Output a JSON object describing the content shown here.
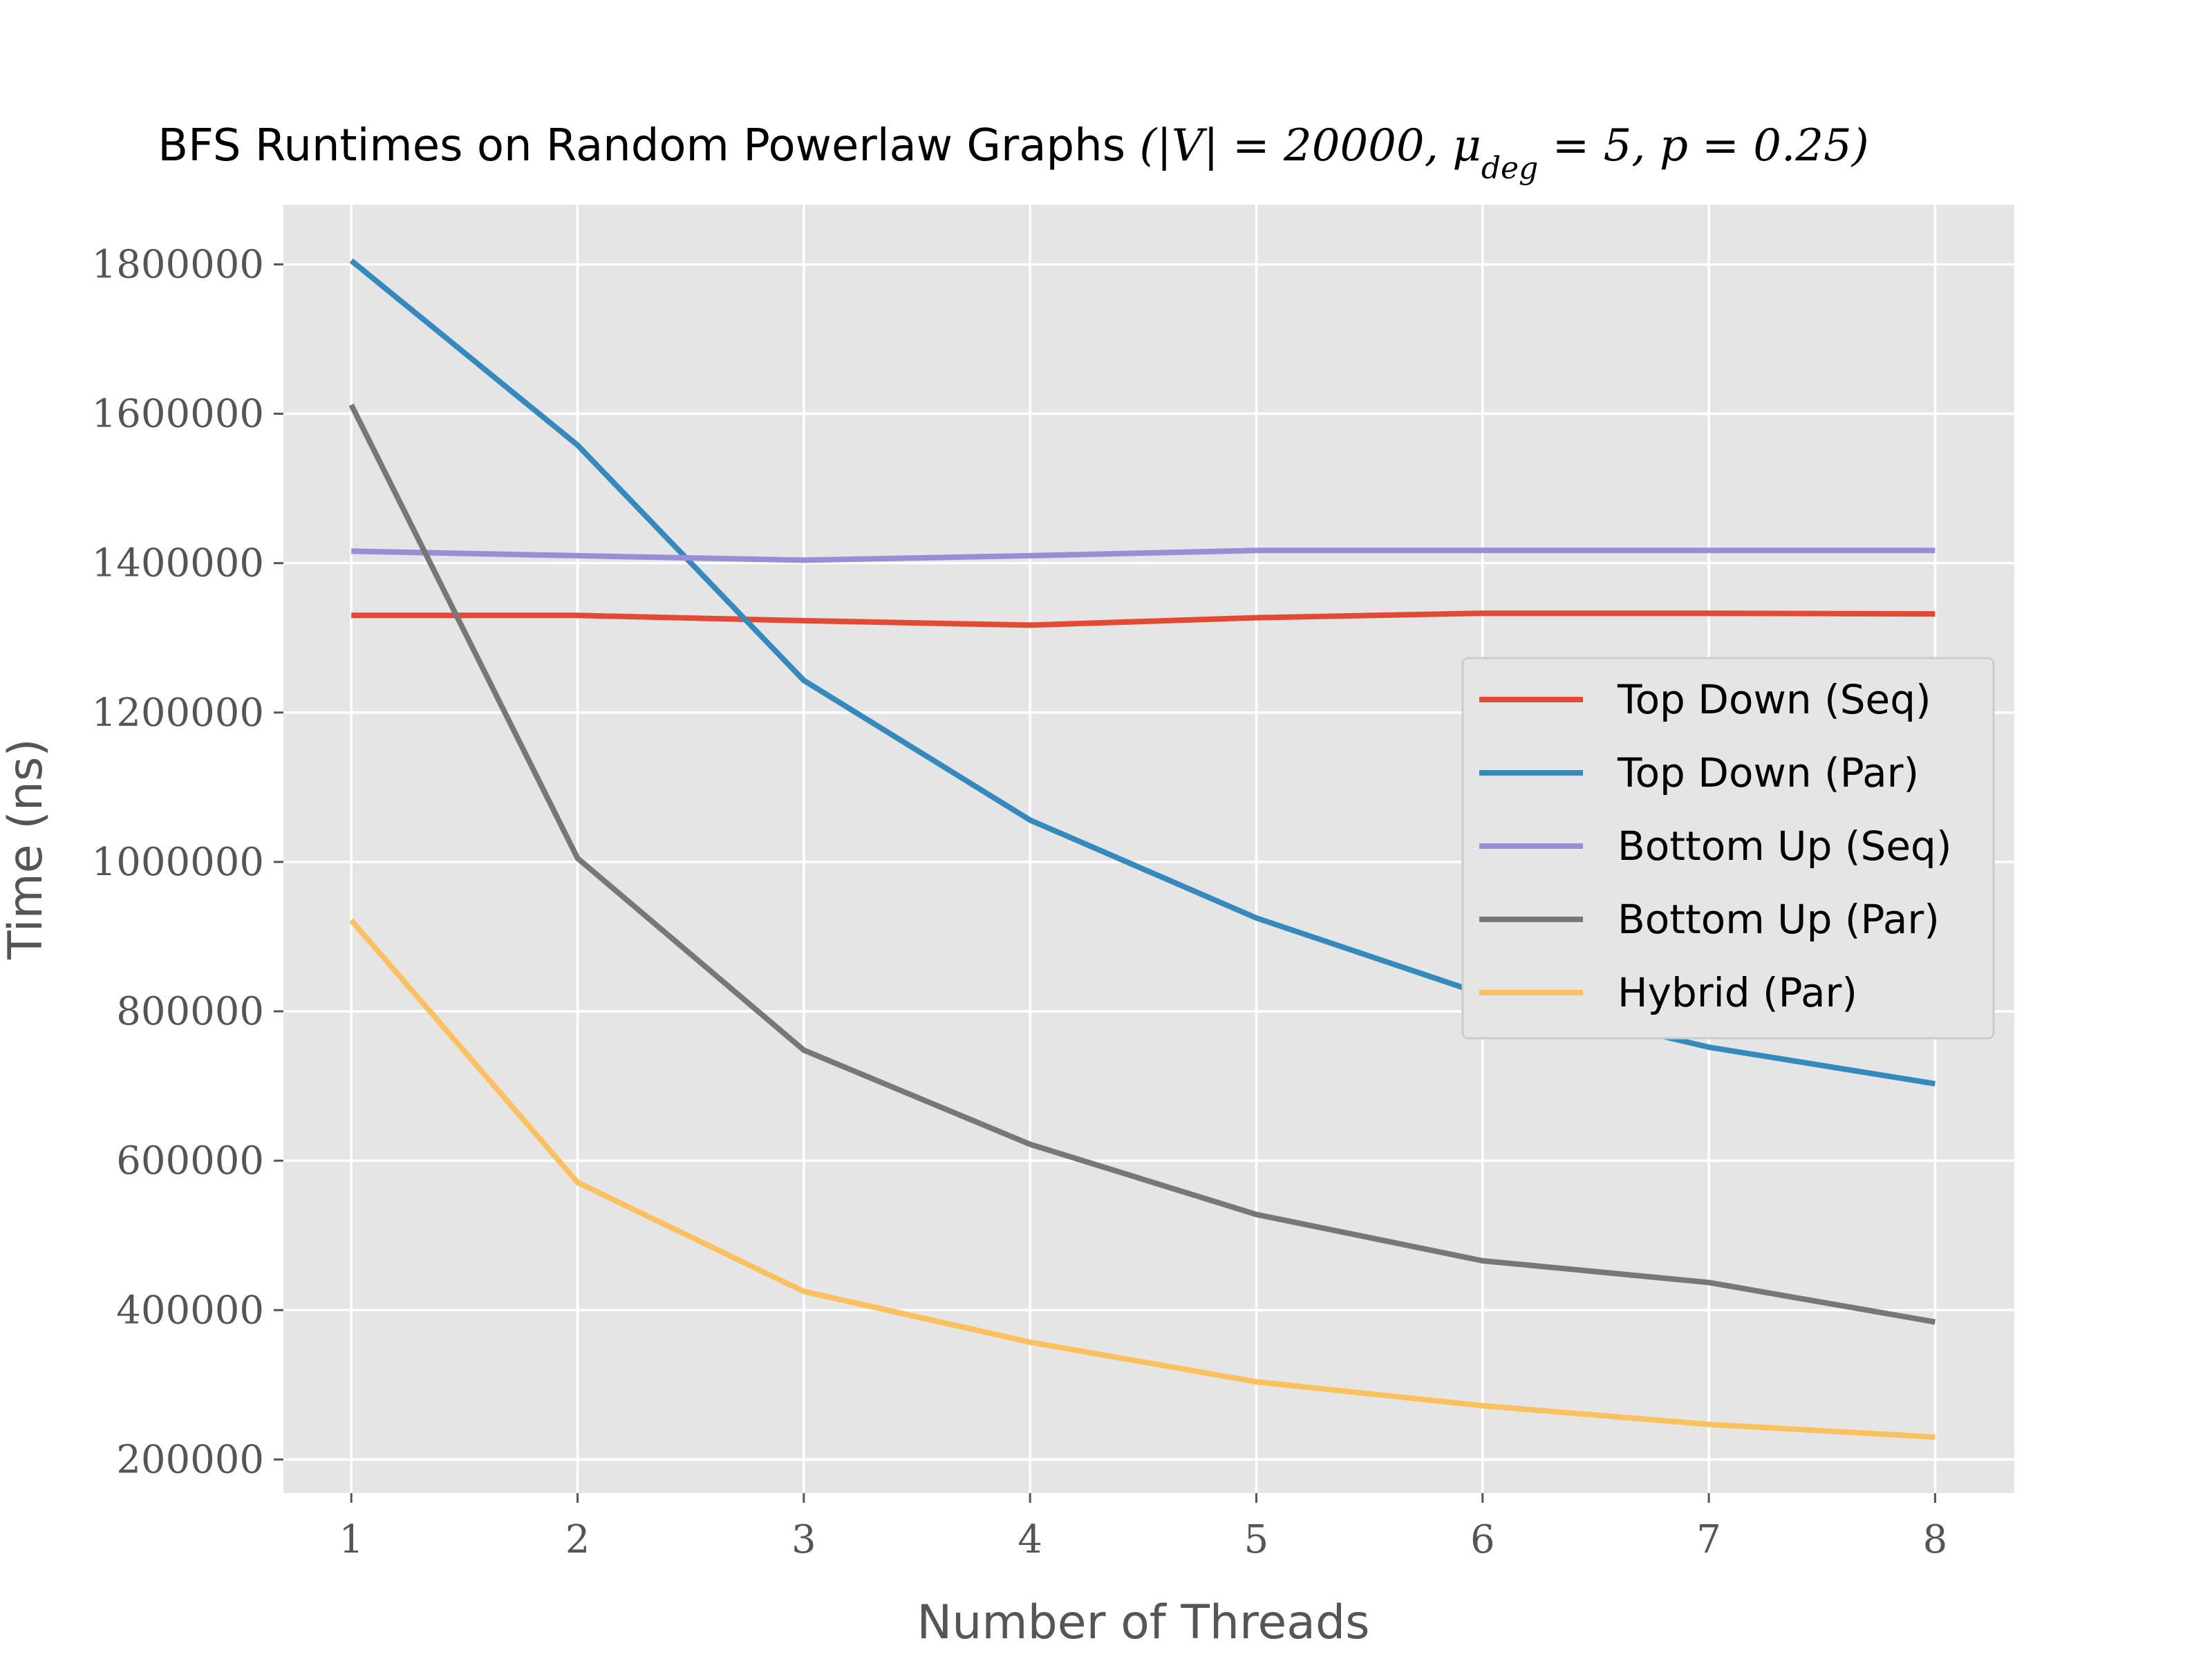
{
  "chart_data": {
    "type": "line",
    "title": "BFS Runtimes on Random Powerlaw Graphs (|V| = 20000, μ_deg = 5, p = 0.25)",
    "title_parts": {
      "prefix": "BFS Runtimes on Random Powerlaw Graphs ",
      "open": "(",
      "v_var": "|V|",
      "v_eq": " = 20000, ",
      "mu": "μ",
      "mu_sub": "deg",
      "mu_eq": " = 5, ",
      "p_var": "p",
      "p_eq": " = 0.25",
      "close": ")"
    },
    "xlabel": "Number of Threads",
    "ylabel": "Time (ns)",
    "x": [
      1,
      2,
      3,
      4,
      5,
      6,
      7,
      8
    ],
    "xticks": [
      "1",
      "2",
      "3",
      "4",
      "5",
      "6",
      "7",
      "8"
    ],
    "yticks": [
      200000,
      400000,
      600000,
      800000,
      1000000,
      1200000,
      1400000,
      1600000,
      1800000
    ],
    "ytick_labels": [
      "200000",
      "400000",
      "600000",
      "800000",
      "1000000",
      "1200000",
      "1400000",
      "1600000",
      "1800000"
    ],
    "xlim": [
      0.7,
      8.35
    ],
    "ylim": [
      155000,
      1880000
    ],
    "grid": true,
    "legend_position": "center-right",
    "series": [
      {
        "name": "Top Down (Seq)",
        "color": "#E24A33",
        "values": [
          1330000,
          1330000,
          1323000,
          1317000,
          1327000,
          1333000,
          1333000,
          1332000
        ]
      },
      {
        "name": "Top Down (Par)",
        "color": "#348ABD",
        "values": [
          1805000,
          1558000,
          1243000,
          1056000,
          925000,
          823000,
          752000,
          703000
        ]
      },
      {
        "name": "Bottom Up (Seq)",
        "color": "#988ED5",
        "values": [
          1416000,
          1410000,
          1404000,
          1410000,
          1417000,
          1417000,
          1417000,
          1417000
        ]
      },
      {
        "name": "Bottom Up (Par)",
        "color": "#777777",
        "values": [
          1612000,
          1005000,
          748000,
          622000,
          528000,
          466000,
          437000,
          384000
        ]
      },
      {
        "name": "Hybrid (Par)",
        "color": "#FBC15E",
        "values": [
          922000,
          571000,
          425000,
          357000,
          304000,
          272000,
          247000,
          230000
        ]
      }
    ]
  }
}
